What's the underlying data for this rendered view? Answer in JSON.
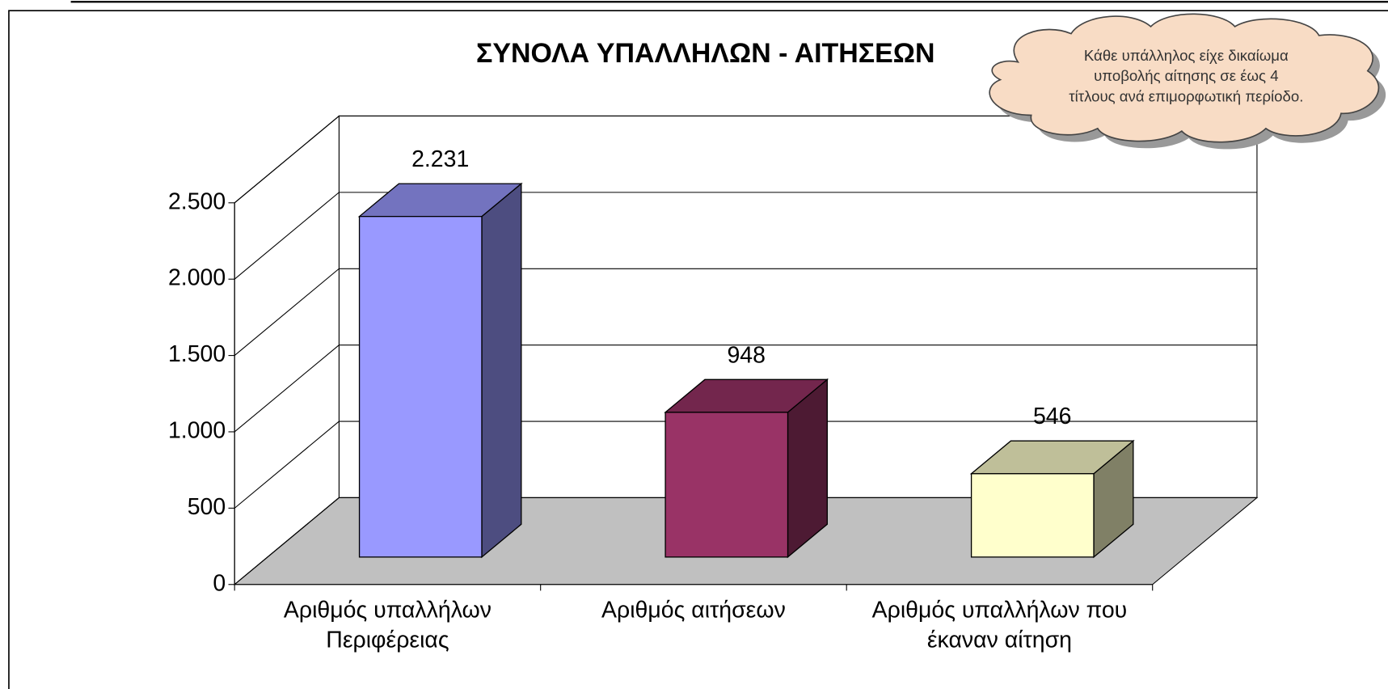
{
  "chart_data": {
    "type": "bar",
    "title": "ΣΥΝΟΛΑ ΥΠΑΛΛΗΛΩΝ - ΑΙΤΗΣΕΩΝ",
    "annotation": [
      "Κάθε υπάλληλος είχε δικαίωμα",
      "υποβολής αίτησης σε έως 4",
      "τίτλους ανά επιμορφωτική περίοδο."
    ],
    "categories": [
      "Αριθμός υπαλλήλων Περιφέρειας",
      "Αριθμός αιτήσεων",
      "Αριθμός υπαλλήλων που έκαναν αίτηση"
    ],
    "values": [
      2231,
      948,
      546
    ],
    "value_labels": [
      "2.231",
      "948",
      "546"
    ],
    "colors": [
      "#9999ff",
      "#993366",
      "#ffffcc"
    ],
    "ylim": [
      0,
      2500
    ],
    "yticks": [
      0,
      500,
      {
        "value": 1000,
        "label": "1.000"
      },
      {
        "value": 1500,
        "label": "1.500"
      },
      {
        "value": 2000,
        "label": "2.000"
      },
      {
        "value": 2500,
        "label": "2.500"
      }
    ],
    "grid": true
  }
}
